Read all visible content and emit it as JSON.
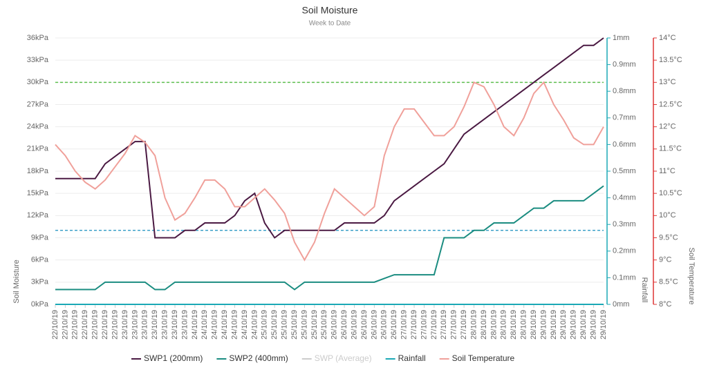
{
  "chart_data": {
    "type": "line",
    "title": "Soil Moisture",
    "subtitle": "Week to Date",
    "y_label": "Soil Moisture",
    "y2_label": "Rainfall",
    "y3_label": "Soil Temperature",
    "categories": [
      "22/10/19",
      "22/10/19",
      "22/10/19",
      "22/10/19",
      "22/10/19",
      "22/10/19",
      "22/10/19",
      "23/10/19",
      "23/10/19",
      "23/10/19",
      "23/10/19",
      "23/10/19",
      "23/10/19",
      "23/10/19",
      "24/10/19",
      "24/10/19",
      "24/10/19",
      "24/10/19",
      "24/10/19",
      "24/10/19",
      "24/10/19",
      "25/10/19",
      "25/10/19",
      "25/10/19",
      "25/10/19",
      "25/10/19",
      "25/10/19",
      "25/10/19",
      "26/10/19",
      "26/10/19",
      "26/10/19",
      "26/10/19",
      "26/10/19",
      "26/10/19",
      "26/10/19",
      "27/10/19",
      "27/10/19",
      "27/10/19",
      "27/10/19",
      "27/10/19",
      "27/10/19",
      "27/10/19",
      "28/10/19",
      "28/10/19",
      "28/10/19",
      "28/10/19",
      "28/10/19",
      "28/10/19",
      "28/10/19",
      "29/10/19",
      "29/10/19",
      "29/10/19",
      "29/10/19",
      "29/10/19",
      "29/10/19",
      "29/10/19"
    ],
    "series": [
      {
        "name": "SWP1 (200mm)",
        "color": "#4a1942",
        "axis": "y",
        "values": [
          17,
          17,
          17,
          17,
          17,
          19,
          20,
          21,
          22,
          22,
          9,
          9,
          9,
          10,
          10,
          11,
          11,
          11,
          12,
          14,
          15,
          11,
          9,
          10,
          10,
          10,
          10,
          10,
          10,
          11,
          11,
          11,
          11,
          12,
          14,
          15,
          16,
          17,
          18,
          19,
          21,
          23,
          24,
          25,
          26,
          27,
          28,
          29,
          30,
          31,
          32,
          33,
          34,
          35,
          35,
          36
        ]
      },
      {
        "name": "SWP2 (400mm)",
        "color": "#1a8c80",
        "axis": "y",
        "values": [
          2,
          2,
          2,
          2,
          2,
          3,
          3,
          3,
          3,
          3,
          2,
          2,
          3,
          3,
          3,
          3,
          3,
          3,
          3,
          3,
          3,
          3,
          3,
          3,
          2,
          3,
          3,
          3,
          3,
          3,
          3,
          3,
          3,
          3.5,
          4,
          4,
          4,
          4,
          4,
          9,
          9,
          9,
          10,
          10,
          11,
          11,
          11,
          12,
          13,
          13,
          14,
          14,
          14,
          14,
          15,
          16
        ]
      },
      {
        "name": "SWP (Average)",
        "color": "#cccccc",
        "hidden": true
      },
      {
        "name": "Rainfall",
        "color": "#1aa8b5",
        "axis": "y2",
        "values": [
          0,
          0,
          0,
          0,
          0,
          0,
          0,
          0,
          0,
          0,
          0,
          0,
          0,
          0,
          0,
          0,
          0,
          0,
          0,
          0,
          0,
          0,
          0,
          0,
          0,
          0,
          0,
          0,
          0,
          0,
          0,
          0,
          0,
          0,
          0,
          0,
          0,
          0,
          0,
          0,
          0,
          0,
          0,
          0,
          0,
          0,
          0,
          0,
          0,
          0,
          0,
          0,
          0,
          0,
          0,
          0
        ]
      },
      {
        "name": "Soil Temperature",
        "color": "#f0a09a",
        "axis": "y3",
        "values": [
          11.6,
          11.35,
          11,
          10.75,
          10.6,
          10.8,
          11.1,
          11.4,
          11.8,
          11.65,
          11.35,
          10.4,
          9.9,
          10.05,
          10.4,
          10.8,
          10.8,
          10.6,
          10.2,
          10.2,
          10.4,
          10.6,
          10.35,
          10.05,
          9.4,
          9,
          9.4,
          10.05,
          10.6,
          10.4,
          10.2,
          10,
          10.2,
          11.35,
          12,
          12.4,
          12.4,
          12.1,
          11.8,
          11.8,
          12,
          12.45,
          13,
          12.9,
          12.5,
          12,
          11.8,
          12.2,
          12.75,
          13,
          12.5,
          12.15,
          11.75,
          11.6,
          11.6,
          12
        ]
      }
    ],
    "reference_lines": [
      {
        "value": 30,
        "color": "#5cbf4c"
      },
      {
        "value": 10,
        "color": "#3ca0c8"
      }
    ],
    "ylim": [
      0,
      36
    ],
    "yticks": [
      {
        "value": 0,
        "label": "0kPa"
      },
      {
        "value": 3,
        "label": "3kPa"
      },
      {
        "value": 6,
        "label": "6kPa"
      },
      {
        "value": 9,
        "label": "9kPa"
      },
      {
        "value": 12,
        "label": "12kPa"
      },
      {
        "value": 15,
        "label": "15kPa"
      },
      {
        "value": 18,
        "label": "18kPa"
      },
      {
        "value": 21,
        "label": "21kPa"
      },
      {
        "value": 24,
        "label": "24kPa"
      },
      {
        "value": 27,
        "label": "27kPa"
      },
      {
        "value": 30,
        "label": "30kPa"
      },
      {
        "value": 33,
        "label": "33kPa"
      },
      {
        "value": 36,
        "label": "36kPa"
      }
    ],
    "y2lim": [
      0,
      1
    ],
    "y2ticks": [
      {
        "value": 0,
        "label": "0mm"
      },
      {
        "value": 0.1,
        "label": "0.1mm"
      },
      {
        "value": 0.2,
        "label": "0.2mm"
      },
      {
        "value": 0.3,
        "label": "0.3mm"
      },
      {
        "value": 0.4,
        "label": "0.4mm"
      },
      {
        "value": 0.5,
        "label": "0.5mm"
      },
      {
        "value": 0.6,
        "label": "0.6mm"
      },
      {
        "value": 0.7,
        "label": "0.7mm"
      },
      {
        "value": 0.8,
        "label": "0.8mm"
      },
      {
        "value": 0.9,
        "label": "0.9mm"
      },
      {
        "value": 1,
        "label": "1mm"
      }
    ],
    "y3lim": [
      8,
      14
    ],
    "y3ticks": [
      {
        "value": 8,
        "label": "8°C"
      },
      {
        "value": 8.5,
        "label": "8.5°C"
      },
      {
        "value": 9,
        "label": "9°C"
      },
      {
        "value": 9.5,
        "label": "9.5°C"
      },
      {
        "value": 10,
        "label": "10°C"
      },
      {
        "value": 10.5,
        "label": "10.5°C"
      },
      {
        "value": 11,
        "label": "11°C"
      },
      {
        "value": 11.5,
        "label": "11.5°C"
      },
      {
        "value": 12,
        "label": "12°C"
      },
      {
        "value": 12.5,
        "label": "12.5°C"
      },
      {
        "value": 13,
        "label": "13°C"
      },
      {
        "value": 13.5,
        "label": "13.5°C"
      },
      {
        "value": 14,
        "label": "14°C"
      }
    ],
    "grid": true,
    "legend": "bottom"
  }
}
